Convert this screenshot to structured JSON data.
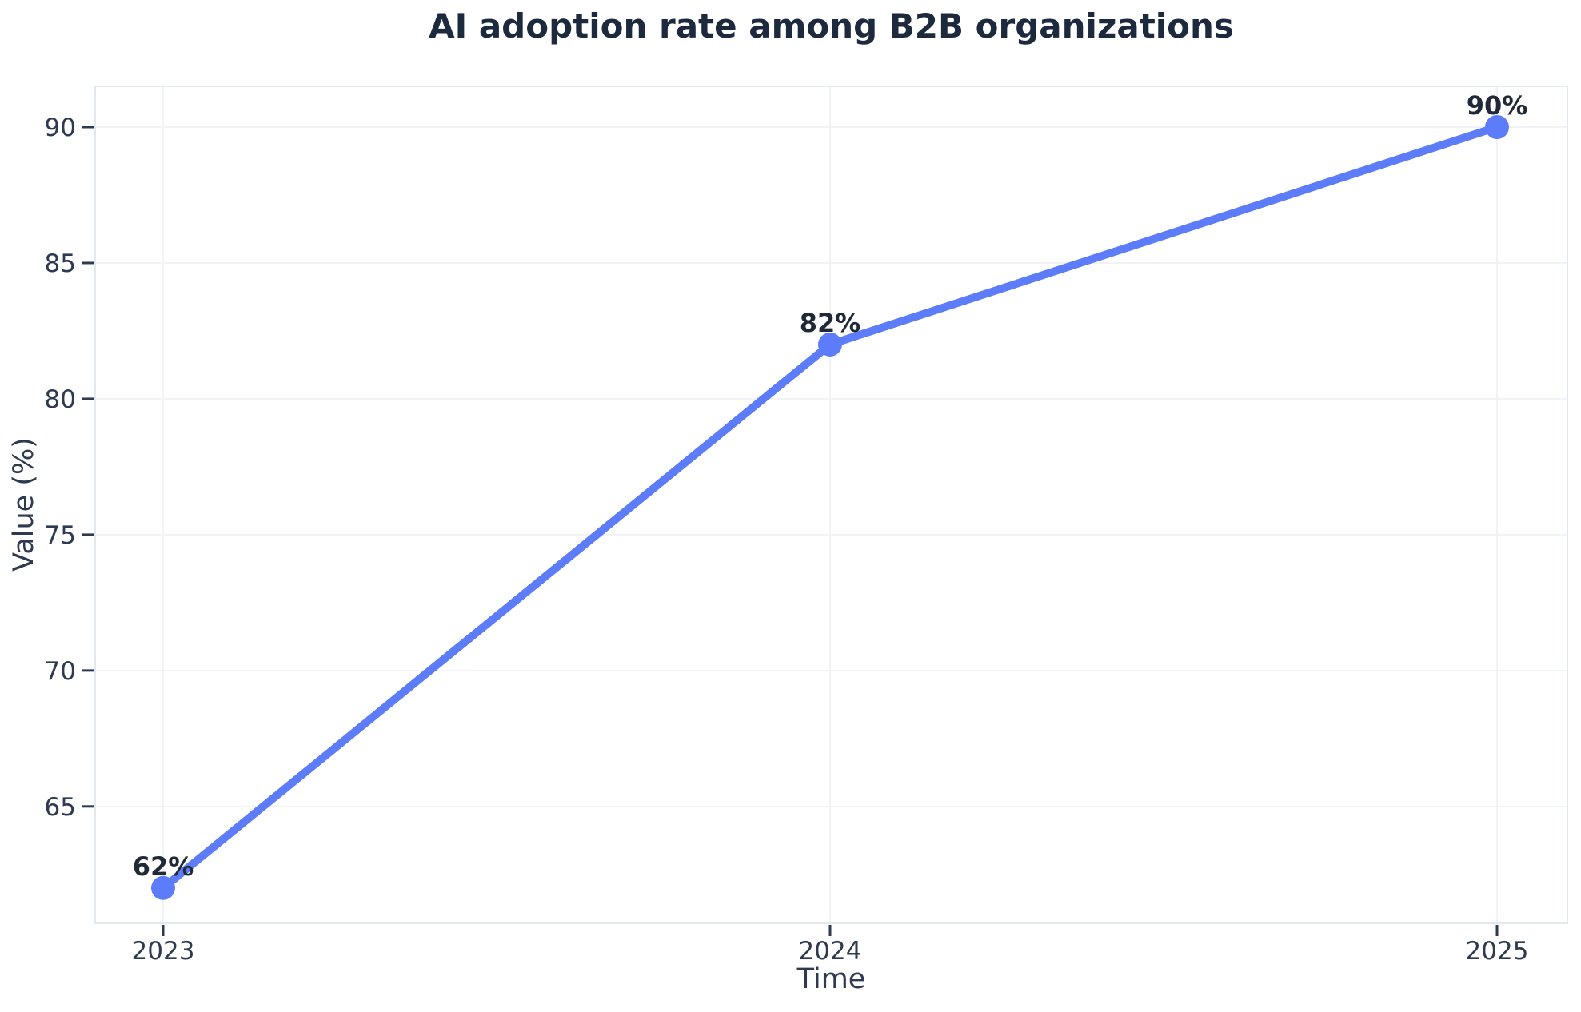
{
  "chart_data": {
    "type": "line",
    "title": "AI adoption rate among B2B organizations",
    "xlabel": "Time",
    "ylabel": "Value (%)",
    "categories": [
      "2023",
      "2024",
      "2025"
    ],
    "series": [
      {
        "name": "AI adoption rate",
        "values": [
          62,
          82,
          90
        ],
        "point_labels": [
          "62%",
          "82%",
          "90%"
        ]
      }
    ],
    "yticks": [
      65,
      70,
      75,
      80,
      85,
      90
    ],
    "ytick_labels": [
      "65",
      "70",
      "75",
      "80",
      "85",
      "90"
    ],
    "ylim": [
      60.7,
      91.5
    ],
    "grid": true,
    "legend": false,
    "colors": {
      "line": "#5C7CFA",
      "marker": "#5C7CFA",
      "title_text": "#1D2A3E",
      "axis_text": "#2E3A50",
      "data_label_text": "#1F2937",
      "gridline": "#F1F3F7",
      "spine": "#E2E8EF",
      "tick_mark": "#2E3A50",
      "background": "#FFFFFF"
    }
  }
}
